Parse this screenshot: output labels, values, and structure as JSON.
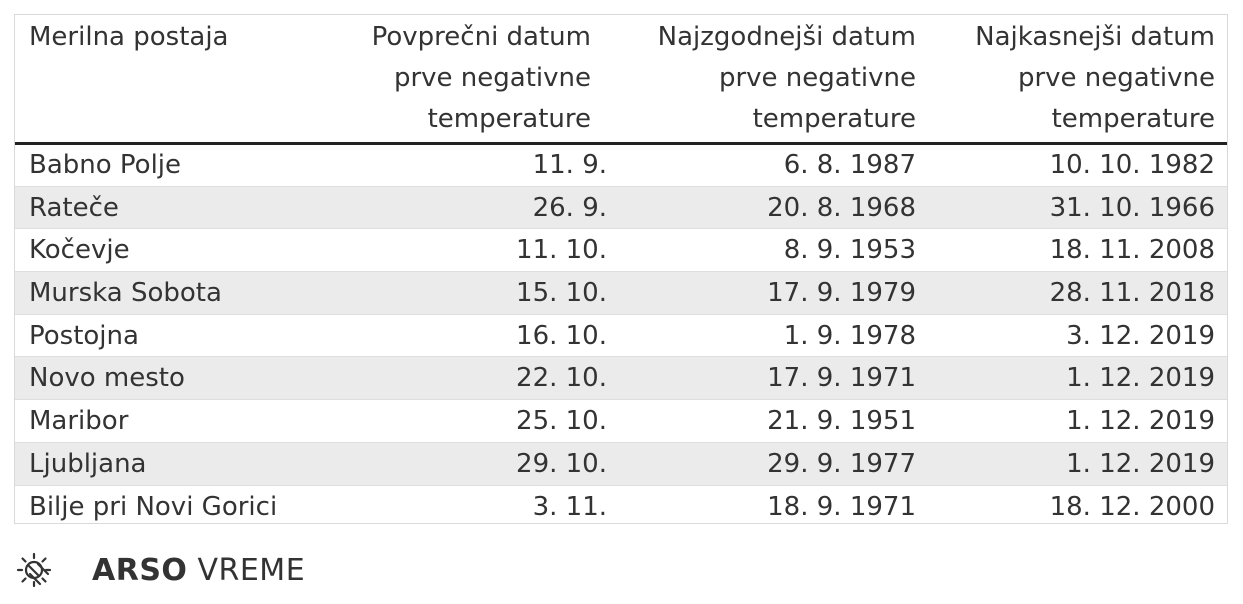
{
  "table": {
    "headers": [
      "Merilna postaja",
      "Povprečni datum prve negativne temperature",
      "Najzgodnejši datum prve negativne temperature",
      "Najkasnejši datum prve negativne temperature"
    ],
    "rows": [
      [
        "Babno Polje",
        "11. 9.",
        "6. 8. 1987",
        "10. 10. 1982"
      ],
      [
        "Rateče",
        "26. 9.",
        "20. 8. 1968",
        "31. 10. 1966"
      ],
      [
        "Kočevje",
        "11. 10.",
        "8. 9. 1953",
        "18. 11. 2008"
      ],
      [
        "Murska Sobota",
        "15. 10.",
        "17. 9. 1979",
        "28. 11. 2018"
      ],
      [
        "Postojna",
        "16. 10.",
        "1. 9. 1978",
        "3. 12. 2019"
      ],
      [
        "Novo mesto",
        "22. 10.",
        "17. 9. 1971",
        "1. 12. 2019"
      ],
      [
        "Maribor",
        "25. 10.",
        "21. 9. 1951",
        "1. 12. 2019"
      ],
      [
        "Ljubljana",
        "29. 10.",
        "29. 9. 1977",
        "1. 12. 2019"
      ],
      [
        "Bilje pri Novi Gorici",
        "3. 11.",
        "18. 9. 1971",
        "18. 12. 2000"
      ]
    ]
  },
  "chart_data": {
    "type": "table",
    "columns": [
      "Merilna postaja",
      "Povprečni datum prve negativne temperature",
      "Najzgodnejši datum prve negativne temperature",
      "Najkasnejši datum prve negativne temperature"
    ],
    "rows": [
      [
        "Babno Polje",
        "11. 9.",
        "6. 8. 1987",
        "10. 10. 1982"
      ],
      [
        "Rateče",
        "26. 9.",
        "20. 8. 1968",
        "31. 10. 1966"
      ],
      [
        "Kočevje",
        "11. 10.",
        "8. 9. 1953",
        "18. 11. 2008"
      ],
      [
        "Murska Sobota",
        "15. 10.",
        "17. 9. 1979",
        "28. 11. 2018"
      ],
      [
        "Postojna",
        "16. 10.",
        "1. 9. 1978",
        "3. 12. 2019"
      ],
      [
        "Novo mesto",
        "22. 10.",
        "17. 9. 1971",
        "1. 12. 2019"
      ],
      [
        "Maribor",
        "25. 10.",
        "21. 9. 1951",
        "1. 12. 2019"
      ],
      [
        "Ljubljana",
        "29. 10.",
        "29. 9. 1977",
        "1. 12. 2019"
      ],
      [
        "Bilje pri Novi Gorici",
        "3. 11.",
        "18. 9. 1971",
        "18. 12. 2000"
      ]
    ]
  },
  "footer": {
    "brand_bold": "ARSO",
    "brand_light": "VREME",
    "icon": "weather-sun-icon"
  },
  "colors": {
    "text": "#333333",
    "row_alt": "#ebebeb",
    "header_rule": "#222222",
    "border": "#d9d9d9"
  }
}
